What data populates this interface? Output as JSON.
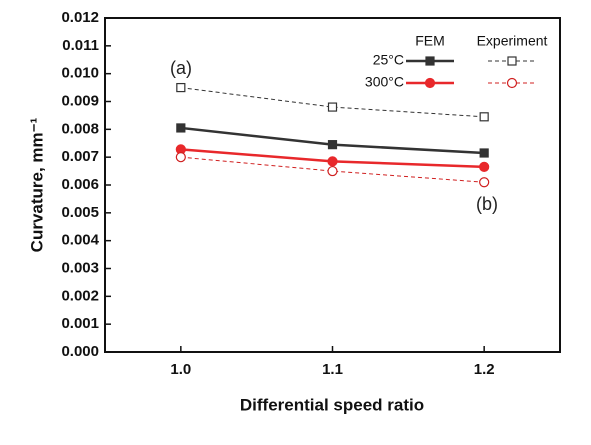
{
  "chart_data": {
    "type": "line",
    "x_label": "Differential speed ratio",
    "y_label": "Curvature, mm⁻¹",
    "x": [
      1.0,
      1.1,
      1.2
    ],
    "xlim": [
      0.95,
      1.25
    ],
    "xticks": [
      {
        "value": 1.0,
        "label": "1.0"
      },
      1.1,
      1.2
    ],
    "ylim": [
      0,
      0.012
    ],
    "yticks": [
      {
        "value": 0,
        "label": "0.000"
      },
      0.001,
      0.002,
      0.003,
      0.004,
      0.005,
      0.006,
      0.007,
      0.008,
      0.009,
      {
        "value": 0.01,
        "label": "0.010"
      },
      0.011,
      0.012
    ],
    "legend": {
      "columns": [
        "FEM",
        "Experiment"
      ],
      "rows": [
        "25°C",
        "300°C"
      ]
    },
    "series": [
      {
        "legend": [
          0,
          0
        ],
        "color": "#333333",
        "marker": "square",
        "filled": true,
        "dashed": false,
        "values": [
          0.00805,
          0.00745,
          0.00715
        ]
      },
      {
        "legend": [
          0,
          1
        ],
        "color": "#e8282b",
        "marker": "circle",
        "filled": true,
        "dashed": false,
        "values": [
          0.00728,
          0.00685,
          0.00665
        ]
      },
      {
        "legend": [
          1,
          0
        ],
        "color": "#333333",
        "marker": "square",
        "filled": false,
        "dashed": true,
        "values": [
          0.0095,
          0.0088,
          0.00845
        ]
      },
      {
        "legend": [
          1,
          1
        ],
        "color": "#d02020",
        "marker": "circle",
        "filled": false,
        "dashed": true,
        "values": [
          0.007,
          0.0065,
          0.0061
        ]
      }
    ],
    "annotations": [
      "(a)",
      "(b)"
    ]
  }
}
